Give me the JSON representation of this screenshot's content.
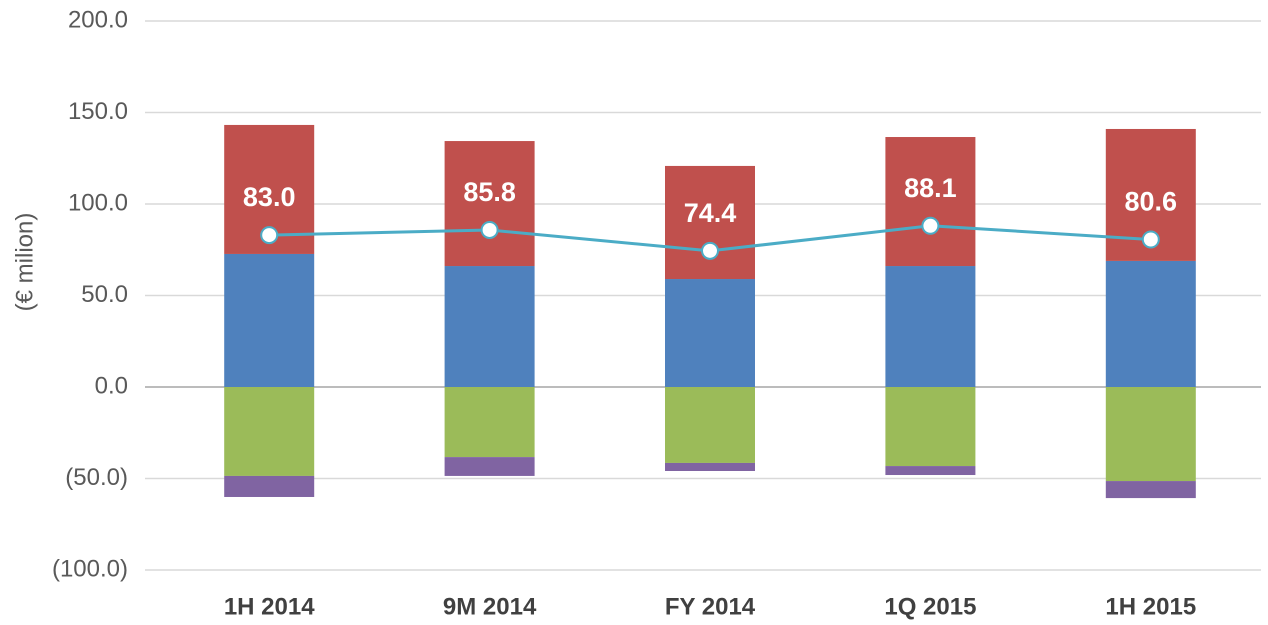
{
  "chart_data": {
    "type": "bar",
    "stacked": true,
    "y_label": "(€ milion)",
    "categories": [
      "1H 2014",
      "9M 2014",
      "FY 2014",
      "1Q 2015",
      "1H 2015"
    ],
    "series": [
      {
        "color": "#4f81bd",
        "values": [
          72.7,
          66.1,
          59.0,
          66.1,
          68.9
        ]
      },
      {
        "color": "#c0504d",
        "values": [
          70.5,
          68.3,
          61.8,
          70.5,
          72.1
        ]
      },
      {
        "color": "#9bbb59",
        "values": [
          -48.6,
          -38.3,
          -41.5,
          -43.2,
          -51.4
        ]
      },
      {
        "color": "#8064a2",
        "values": [
          -11.5,
          -10.3,
          -4.4,
          -4.9,
          -9.3
        ]
      },
      {
        "type": "line",
        "color": "#4bacc6",
        "values": [
          83.0,
          85.8,
          74.4,
          88.1,
          80.6
        ],
        "value_labels": [
          "83.0",
          "85.8",
          "74.4",
          "88.1",
          "80.6"
        ]
      }
    ],
    "ylim": [
      -100,
      200
    ],
    "yticks": [
      {
        "value": -100,
        "label": "(100.0)"
      },
      {
        "value": -50,
        "label": "(50.0)"
      },
      {
        "value": 0,
        "label": "0.0"
      },
      {
        "value": 50,
        "label": "50.0"
      },
      {
        "value": 100,
        "label": "100.0"
      },
      {
        "value": 150,
        "label": "150.0"
      },
      {
        "value": 200,
        "label": "200.0"
      }
    ],
    "grid": true
  }
}
